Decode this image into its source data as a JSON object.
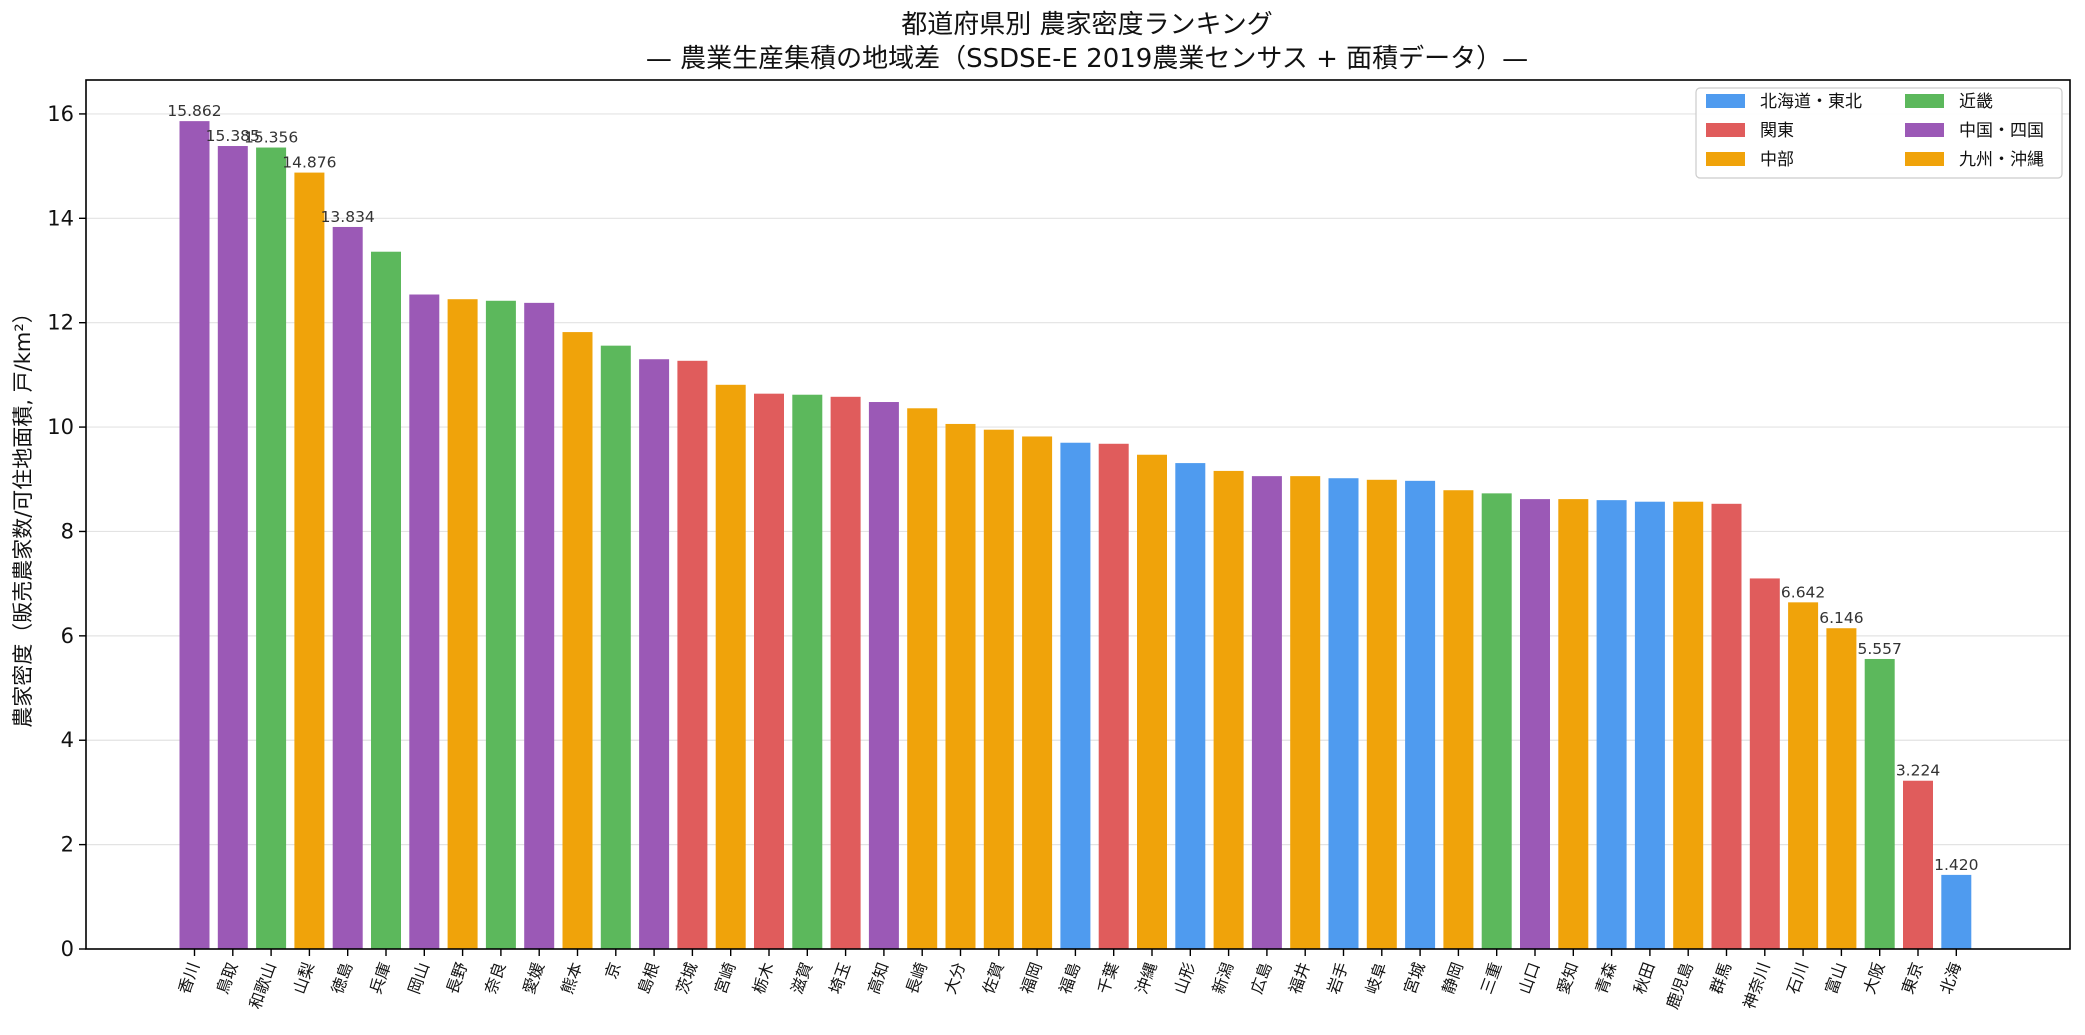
{
  "chart_data": {
    "type": "bar",
    "title": "都道府県別 農家密度ランキング",
    "subtitle": "— 農業生産集積の地域差（SSDSE-E 2019農業センサス + 面積データ）—",
    "xlabel": "",
    "ylabel": "農家密度（販売農家数/可住地面積, 戸/km²）",
    "ylim": [
      0,
      16.65
    ],
    "yticks": [
      0,
      2,
      4,
      6,
      8,
      10,
      12,
      14,
      16
    ],
    "grid": true,
    "legend_position": "top-right",
    "regions": [
      {
        "name": "北海道・東北",
        "color": "#4f9bef"
      },
      {
        "name": "関東",
        "color": "#e05c5c"
      },
      {
        "name": "中部",
        "color": "#f0a30a"
      },
      {
        "name": "近畿",
        "color": "#5cb85c"
      },
      {
        "name": "中国・四国",
        "color": "#9b59b6"
      },
      {
        "name": "九州・沖縄",
        "color": "#f0a30a"
      }
    ],
    "categories": [
      "香川",
      "鳥取",
      "和歌山",
      "山梨",
      "徳島",
      "兵庫",
      "岡山",
      "長野",
      "奈良",
      "愛媛",
      "熊本",
      "京",
      "島根",
      "茨城",
      "宮崎",
      "栃木",
      "滋賀",
      "埼玉",
      "高知",
      "長崎",
      "大分",
      "佐賀",
      "福岡",
      "福島",
      "千葉",
      "沖縄",
      "山形",
      "新潟",
      "広島",
      "福井",
      "岩手",
      "岐阜",
      "宮城",
      "静岡",
      "三重",
      "山口",
      "愛知",
      "青森",
      "秋田",
      "鹿児島",
      "群馬",
      "神奈川",
      "石川",
      "富山",
      "大阪",
      "東京",
      "北海"
    ],
    "values": [
      15.862,
      15.385,
      15.356,
      14.876,
      13.834,
      13.36,
      12.54,
      12.45,
      12.42,
      12.38,
      11.82,
      11.56,
      11.3,
      11.27,
      10.81,
      10.64,
      10.62,
      10.58,
      10.48,
      10.36,
      10.06,
      9.95,
      9.82,
      9.7,
      9.68,
      9.47,
      9.31,
      9.16,
      9.06,
      9.06,
      9.02,
      8.99,
      8.97,
      8.79,
      8.73,
      8.62,
      8.62,
      8.6,
      8.57,
      8.57,
      8.53,
      7.1,
      6.642,
      6.146,
      5.557,
      3.224,
      1.42
    ],
    "region_index": [
      4,
      4,
      3,
      2,
      4,
      3,
      4,
      2,
      3,
      4,
      5,
      3,
      4,
      1,
      5,
      1,
      3,
      1,
      4,
      5,
      5,
      5,
      5,
      0,
      1,
      5,
      0,
      2,
      4,
      2,
      0,
      2,
      0,
      2,
      3,
      4,
      2,
      0,
      0,
      5,
      1,
      1,
      2,
      2,
      3,
      1,
      0
    ],
    "data_labels": [
      {
        "index": 0,
        "text": "15.862"
      },
      {
        "index": 1,
        "text": "15.385"
      },
      {
        "index": 2,
        "text": "15.356"
      },
      {
        "index": 3,
        "text": "14.876"
      },
      {
        "index": 4,
        "text": "13.834"
      },
      {
        "index": 42,
        "text": "6.642"
      },
      {
        "index": 43,
        "text": "6.146"
      },
      {
        "index": 44,
        "text": "5.557"
      },
      {
        "index": 45,
        "text": "3.224"
      },
      {
        "index": 46,
        "text": "1.420"
      }
    ]
  }
}
